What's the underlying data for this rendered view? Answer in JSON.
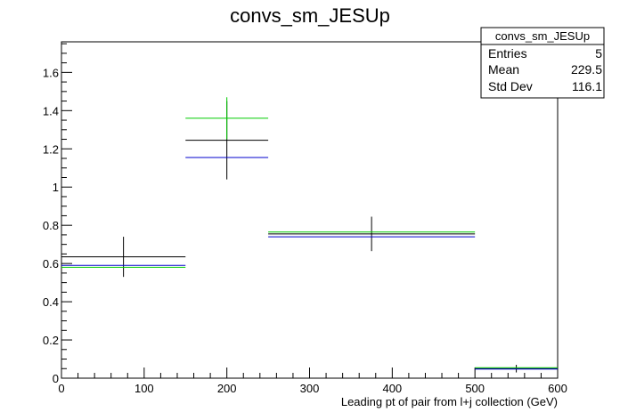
{
  "chart_data": {
    "type": "histogram",
    "title": "convs_sm_JESUp",
    "xlabel": "Leading pt of pair from l+j collection (GeV)",
    "ylabel": "",
    "xlim": [
      0,
      600
    ],
    "ylim": [
      0,
      1.76
    ],
    "x_major_ticks": [
      0,
      100,
      200,
      300,
      400,
      500,
      600
    ],
    "y_major_ticks": [
      0,
      0.2,
      0.4,
      0.6,
      0.8,
      1,
      1.2,
      1.4,
      1.6
    ],
    "y_tick_labels": [
      "0",
      "0.2",
      "0.4",
      "0.6",
      "0.8",
      "1",
      "1.2",
      "1.4",
      "1.6"
    ],
    "bins": [
      {
        "low": 0,
        "high": 150,
        "center": 75
      },
      {
        "low": 150,
        "high": 250,
        "center": 200
      },
      {
        "low": 250,
        "high": 500,
        "center": 375
      },
      {
        "low": 500,
        "high": 600,
        "center": 550
      }
    ],
    "series": [
      {
        "color": "#000000",
        "values": [
          0.635,
          1.245,
          0.755,
          0.05
        ],
        "errors": [
          0.105,
          0.205,
          0.09,
          0.02
        ]
      },
      {
        "color": "#00cc00",
        "values": [
          0.58,
          1.36,
          0.765,
          0.055
        ],
        "errors": [
          0,
          0.11,
          0,
          0
        ]
      },
      {
        "color": "#0000cc",
        "values": [
          0.59,
          1.155,
          0.74,
          0.048
        ],
        "errors": [
          0,
          0,
          0,
          0
        ]
      }
    ],
    "stats": {
      "name": "convs_sm_JESUp",
      "rows": [
        {
          "label": "Entries",
          "value": "5"
        },
        {
          "label": "Mean",
          "value": "229.5"
        },
        {
          "label": "Std Dev",
          "value": "116.1"
        }
      ]
    }
  }
}
